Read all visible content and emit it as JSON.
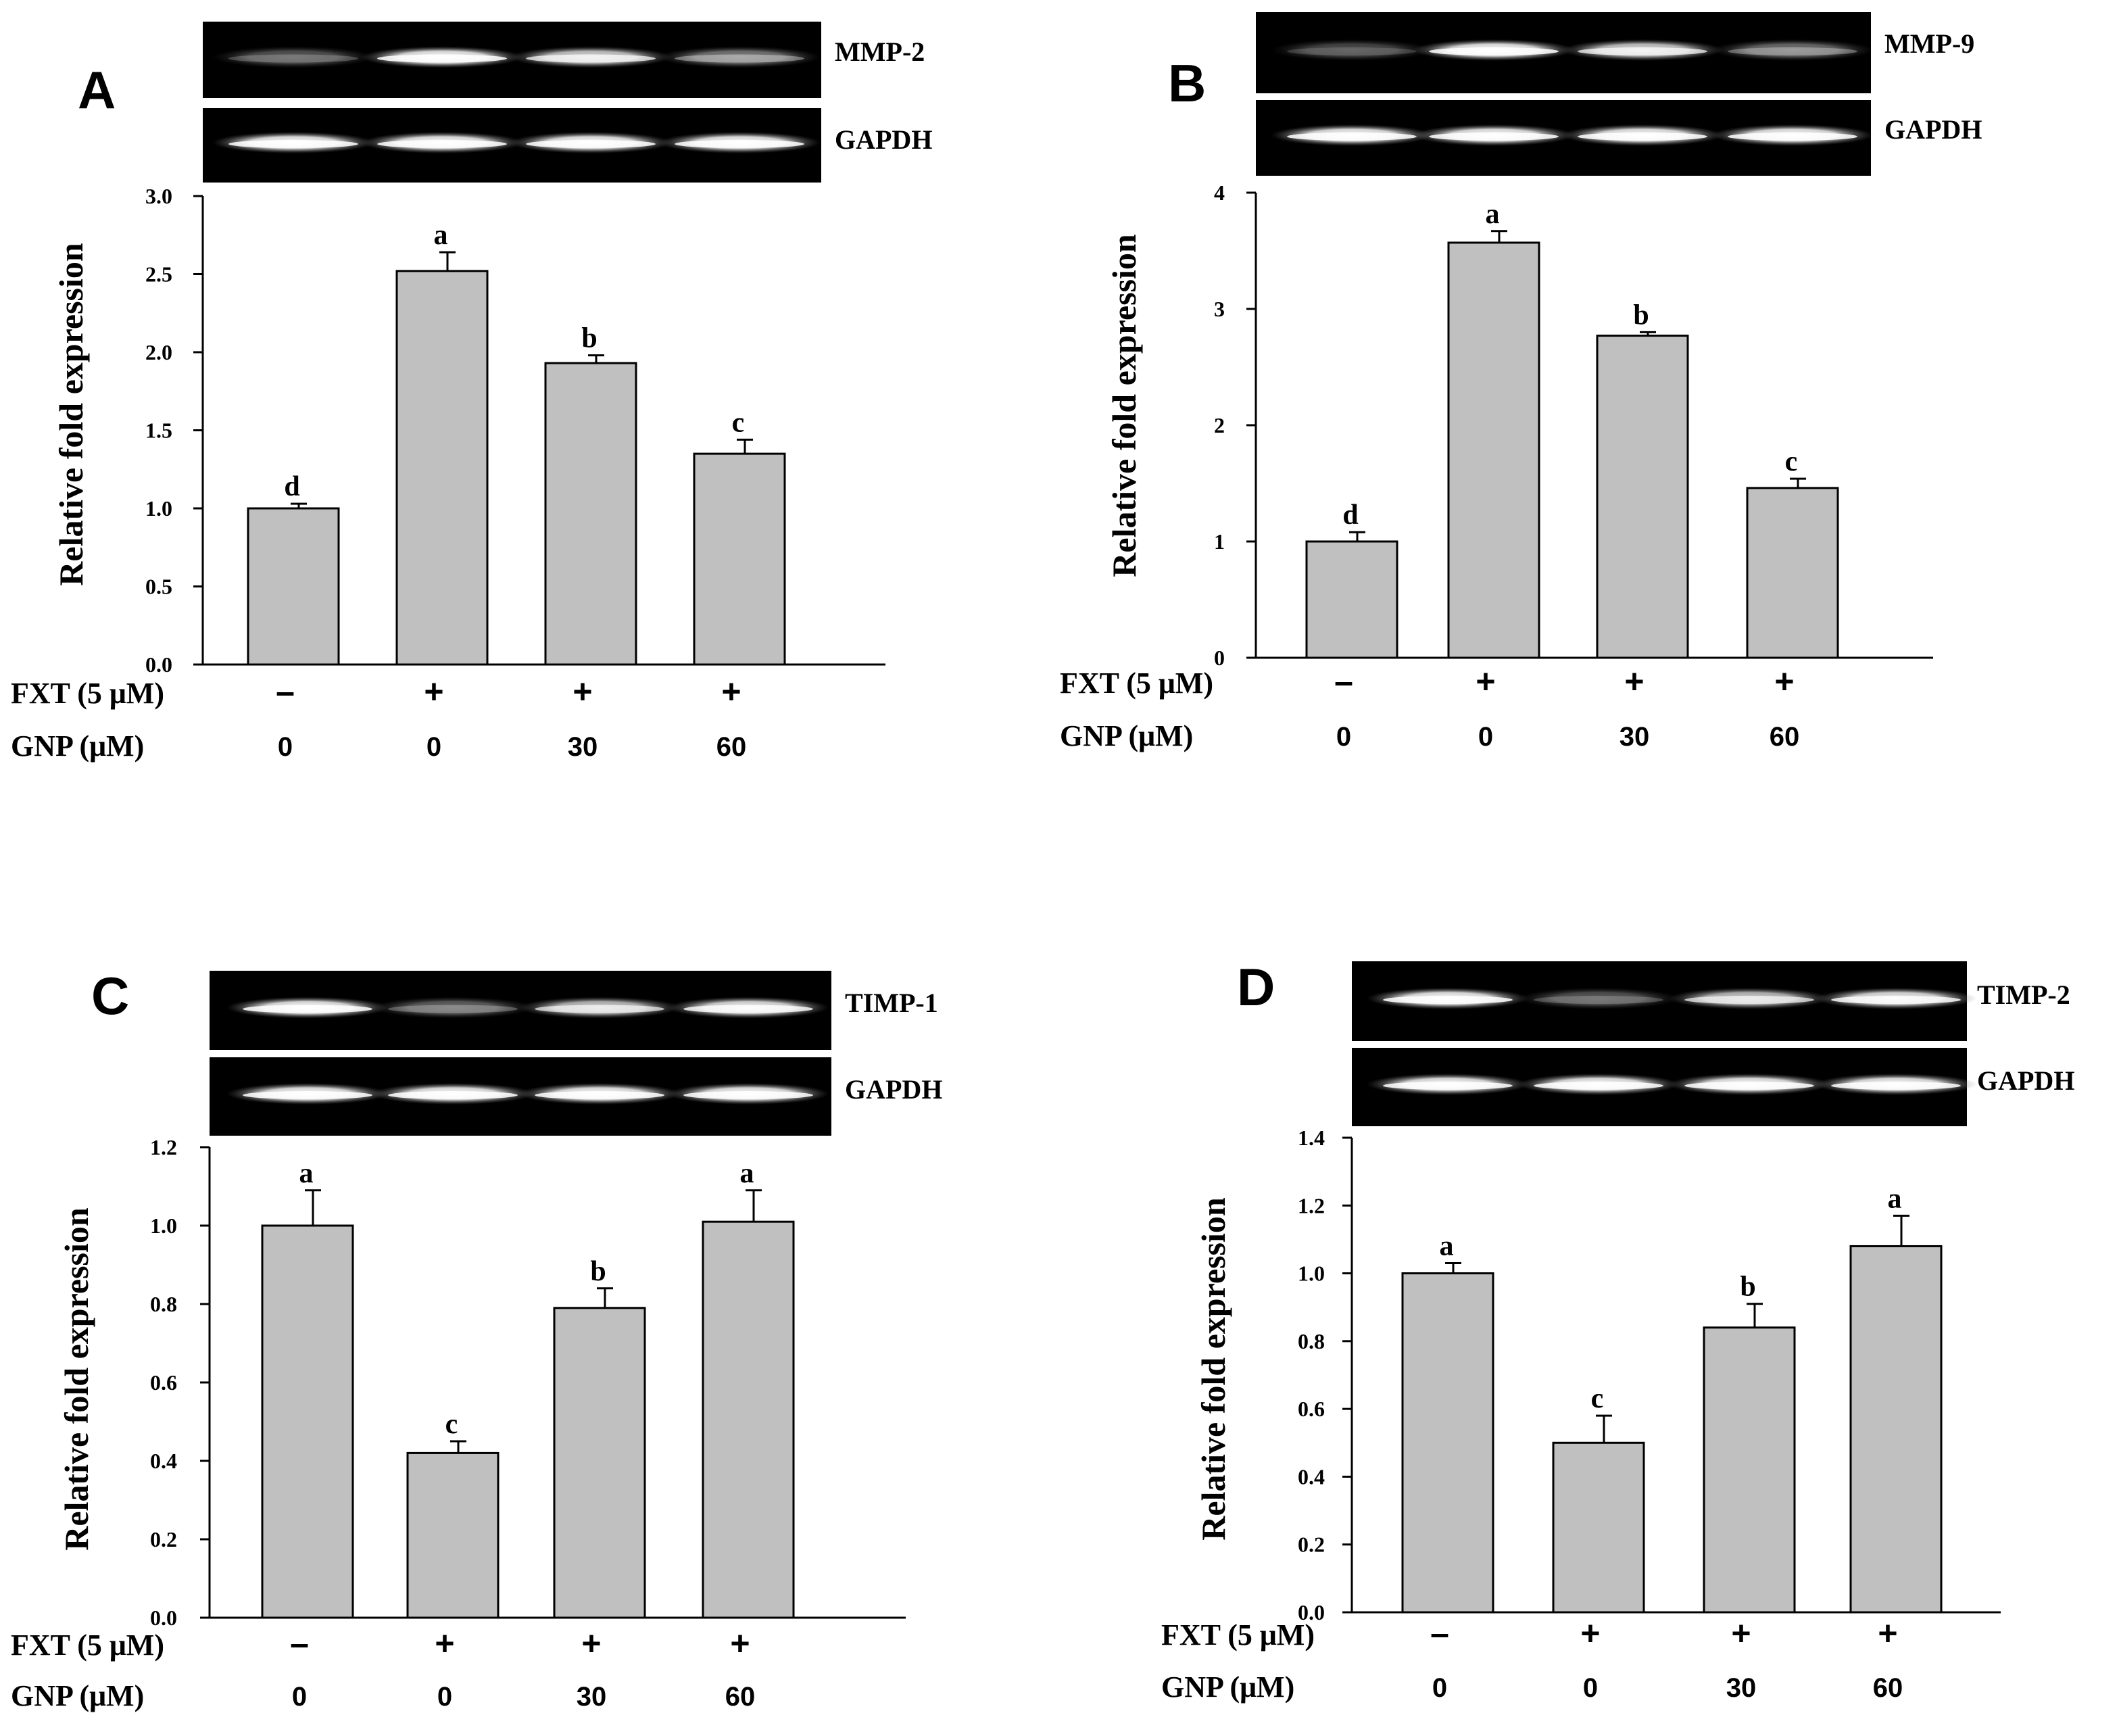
{
  "panels": [
    {
      "letter": "A",
      "gel_label": "MMP-2",
      "ref_label": "GAPDH",
      "gel_intensity": [
        0.35,
        1.0,
        0.85,
        0.5
      ],
      "ref_intensity": [
        1.0,
        1.0,
        1.0,
        1.0
      ]
    },
    {
      "letter": "B",
      "gel_label": "MMP-9",
      "ref_label": "GAPDH",
      "gel_intensity": [
        0.3,
        1.0,
        0.85,
        0.45
      ],
      "ref_intensity": [
        1.0,
        1.0,
        1.0,
        1.0
      ]
    },
    {
      "letter": "C",
      "gel_label": "TIMP-1",
      "ref_label": "GAPDH",
      "gel_intensity": [
        1.0,
        0.4,
        0.8,
        0.95
      ],
      "ref_intensity": [
        1.0,
        1.0,
        1.0,
        1.0
      ]
    },
    {
      "letter": "D",
      "gel_label": "TIMP-2",
      "ref_label": "GAPDH",
      "gel_intensity": [
        1.0,
        0.35,
        0.8,
        0.95
      ],
      "ref_intensity": [
        1.0,
        1.0,
        1.0,
        1.0
      ]
    }
  ],
  "chart_data": [
    {
      "type": "bar",
      "panel": "A",
      "ylabel": "Relative fold expression",
      "ylim": [
        0,
        3.0
      ],
      "yticks": [
        "0.0",
        "0.5",
        "1.0",
        "1.5",
        "2.0",
        "2.5",
        "3.0"
      ],
      "values": [
        1.0,
        2.52,
        1.93,
        1.35
      ],
      "errors": [
        0.03,
        0.12,
        0.05,
        0.09
      ],
      "significance": [
        "d",
        "a",
        "b",
        "c"
      ],
      "conditions": [
        {
          "label": "FXT (5 μM)",
          "values": [
            "–",
            "+",
            "+",
            "+"
          ]
        },
        {
          "label": "GNP (μM)",
          "values": [
            "0",
            "0",
            "30",
            "60"
          ]
        }
      ],
      "bar_color": "#c0c0c0"
    },
    {
      "type": "bar",
      "panel": "B",
      "ylabel": "Relative fold expression",
      "ylim": [
        0,
        4
      ],
      "yticks": [
        "0",
        "1",
        "2",
        "3",
        "4"
      ],
      "values": [
        1.0,
        3.57,
        2.77,
        1.46
      ],
      "errors": [
        0.08,
        0.1,
        0.03,
        0.08
      ],
      "significance": [
        "d",
        "a",
        "b",
        "c"
      ],
      "conditions": [
        {
          "label": "FXT (5 μM)",
          "values": [
            "–",
            "+",
            "+",
            "+"
          ]
        },
        {
          "label": "GNP (μM)",
          "values": [
            "0",
            "0",
            "30",
            "60"
          ]
        }
      ],
      "bar_color": "#c0c0c0"
    },
    {
      "type": "bar",
      "panel": "C",
      "ylabel": "Relative fold expression",
      "ylim": [
        0,
        1.2
      ],
      "yticks": [
        "0.0",
        "0.2",
        "0.4",
        "0.6",
        "0.8",
        "1.0",
        "1.2"
      ],
      "values": [
        1.0,
        0.42,
        0.79,
        1.01
      ],
      "errors": [
        0.09,
        0.03,
        0.05,
        0.08
      ],
      "significance": [
        "a",
        "c",
        "b",
        "a"
      ],
      "conditions": [
        {
          "label": "FXT (5 μM)",
          "values": [
            "–",
            "+",
            "+",
            "+"
          ]
        },
        {
          "label": "GNP (μM)",
          "values": [
            "0",
            "0",
            "30",
            "60"
          ]
        }
      ],
      "bar_color": "#c0c0c0"
    },
    {
      "type": "bar",
      "panel": "D",
      "ylabel": "Relative fold expression",
      "ylim": [
        0,
        1.4
      ],
      "yticks": [
        "0.0",
        "0.2",
        "0.4",
        "0.6",
        "0.8",
        "1.0",
        "1.2",
        "1.4"
      ],
      "values": [
        1.0,
        0.5,
        0.84,
        1.08
      ],
      "errors": [
        0.03,
        0.08,
        0.07,
        0.09
      ],
      "significance": [
        "a",
        "c",
        "b",
        "a"
      ],
      "conditions": [
        {
          "label": "FXT (5 μM)",
          "values": [
            "–",
            "+",
            "+",
            "+"
          ]
        },
        {
          "label": "GNP (μM)",
          "values": [
            "0",
            "0",
            "30",
            "60"
          ]
        }
      ],
      "bar_color": "#c0c0c0"
    }
  ]
}
